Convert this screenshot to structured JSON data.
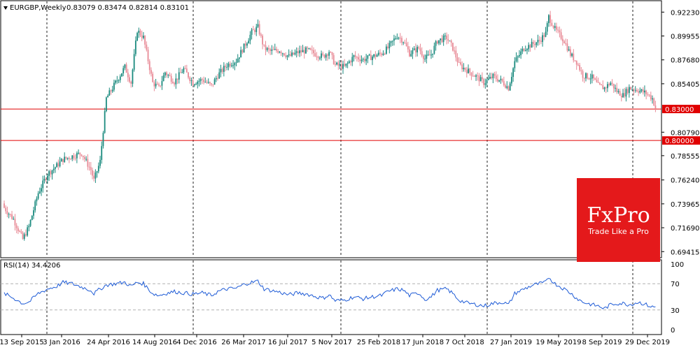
{
  "header": {
    "symbol": "EURGBP,Weekly",
    "ohlc": "0.83079 0.83474 0.82814 0.83101"
  },
  "price_axis": {
    "ticks": [
      "0.92230",
      "0.89955",
      "0.87680",
      "0.85405",
      "0.80790",
      "0.78555",
      "0.76240",
      "0.73965",
      "0.71690",
      "0.69415"
    ],
    "tick_values": [
      0.9223,
      0.89955,
      0.8768,
      0.85405,
      0.8079,
      0.78555,
      0.7624,
      0.73965,
      0.7169,
      0.69415
    ],
    "range": [
      0.689,
      0.9325
    ]
  },
  "levels": [
    {
      "label": "0.83000",
      "value": 0.83,
      "color": "#e00000"
    },
    {
      "label": "0.80000",
      "value": 0.8,
      "color": "#e00000"
    }
  ],
  "time_axis": {
    "labels": [
      "13 Sep 2015",
      "3 Jan 2016",
      "24 Apr 2016",
      "14 Aug 2016",
      "4 Dec 2016",
      "26 Mar 2017",
      "16 Jul 2017",
      "5 Nov 2017",
      "25 Feb 2018",
      "17 Jun 2018",
      "7 Oct 2018",
      "27 Jan 2019",
      "19 May 2019",
      "8 Sep 2019",
      "29 Dec 2019"
    ]
  },
  "rsi": {
    "label": "RSI(14) 34.4206",
    "ticks": [
      "100",
      "70",
      "30",
      "0"
    ],
    "levels": [
      70,
      30
    ],
    "color": "#1e5bd6"
  },
  "logo": {
    "brand": "FxPro",
    "tagline": "Trade Like a Pro",
    "bg": "#e4191b"
  },
  "colors": {
    "bull": "#1a8a7e",
    "bear": "#e88a96",
    "grid": "#222222"
  },
  "chart_data": {
    "type": "candlestick",
    "title": "EURGBP,Weekly",
    "interval": "weekly",
    "first_week": "13 Sep 2015",
    "last_week": "9 Feb 2020",
    "close_path": [
      [
        0,
        0.736
      ],
      [
        6,
        0.725
      ],
      [
        12,
        0.706
      ],
      [
        16,
        0.718
      ],
      [
        22,
        0.75
      ],
      [
        28,
        0.768
      ],
      [
        34,
        0.776
      ],
      [
        38,
        0.782
      ],
      [
        44,
        0.785
      ],
      [
        50,
        0.788
      ],
      [
        56,
        0.772
      ],
      [
        58,
        0.762
      ],
      [
        62,
        0.78
      ],
      [
        66,
        0.84
      ],
      [
        72,
        0.855
      ],
      [
        78,
        0.87
      ],
      [
        82,
        0.855
      ],
      [
        86,
        0.905
      ],
      [
        90,
        0.898
      ],
      [
        96,
        0.855
      ],
      [
        100,
        0.85
      ],
      [
        104,
        0.865
      ],
      [
        110,
        0.856
      ],
      [
        116,
        0.868
      ],
      [
        122,
        0.855
      ],
      [
        128,
        0.858
      ],
      [
        134,
        0.852
      ],
      [
        138,
        0.862
      ],
      [
        144,
        0.872
      ],
      [
        150,
        0.876
      ],
      [
        156,
        0.892
      ],
      [
        160,
        0.903
      ],
      [
        164,
        0.908
      ],
      [
        168,
        0.888
      ],
      [
        172,
        0.885
      ],
      [
        178,
        0.886
      ],
      [
        184,
        0.88
      ],
      [
        190,
        0.884
      ],
      [
        196,
        0.886
      ],
      [
        202,
        0.882
      ],
      [
        206,
        0.88
      ],
      [
        210,
        0.885
      ],
      [
        214,
        0.872
      ],
      [
        220,
        0.87
      ],
      [
        226,
        0.88
      ],
      [
        232,
        0.877
      ],
      [
        238,
        0.88
      ],
      [
        244,
        0.883
      ],
      [
        248,
        0.888
      ],
      [
        254,
        0.9
      ],
      [
        258,
        0.895
      ],
      [
        262,
        0.883
      ],
      [
        268,
        0.888
      ],
      [
        272,
        0.878
      ],
      [
        276,
        0.882
      ],
      [
        280,
        0.895
      ],
      [
        286,
        0.898
      ],
      [
        290,
        0.888
      ],
      [
        294,
        0.872
      ],
      [
        300,
        0.866
      ],
      [
        306,
        0.86
      ],
      [
        310,
        0.855
      ],
      [
        316,
        0.861
      ],
      [
        322,
        0.856
      ],
      [
        326,
        0.85
      ],
      [
        330,
        0.875
      ],
      [
        336,
        0.888
      ],
      [
        342,
        0.892
      ],
      [
        346,
        0.895
      ],
      [
        350,
        0.902
      ],
      [
        352,
        0.918
      ],
      [
        356,
        0.906
      ],
      [
        362,
        0.895
      ],
      [
        366,
        0.882
      ],
      [
        370,
        0.875
      ],
      [
        374,
        0.862
      ],
      [
        380,
        0.86
      ],
      [
        384,
        0.852
      ],
      [
        388,
        0.85
      ],
      [
        392,
        0.855
      ],
      [
        396,
        0.847
      ],
      [
        400,
        0.843
      ],
      [
        404,
        0.85
      ],
      [
        410,
        0.848
      ],
      [
        415,
        0.845
      ],
      [
        419,
        0.84
      ],
      [
        421,
        0.831
      ]
    ],
    "rsi_path": [
      [
        0,
        55
      ],
      [
        6,
        48
      ],
      [
        12,
        40
      ],
      [
        16,
        42
      ],
      [
        22,
        55
      ],
      [
        28,
        62
      ],
      [
        34,
        66
      ],
      [
        38,
        72
      ],
      [
        44,
        70
      ],
      [
        50,
        65
      ],
      [
        56,
        60
      ],
      [
        58,
        55
      ],
      [
        62,
        62
      ],
      [
        66,
        68
      ],
      [
        72,
        70
      ],
      [
        78,
        72
      ],
      [
        82,
        66
      ],
      [
        86,
        72
      ],
      [
        90,
        70
      ],
      [
        96,
        55
      ],
      [
        100,
        52
      ],
      [
        104,
        55
      ],
      [
        110,
        58
      ],
      [
        116,
        56
      ],
      [
        122,
        54
      ],
      [
        128,
        56
      ],
      [
        134,
        52
      ],
      [
        138,
        58
      ],
      [
        144,
        62
      ],
      [
        150,
        63
      ],
      [
        156,
        70
      ],
      [
        160,
        72
      ],
      [
        164,
        74
      ],
      [
        168,
        62
      ],
      [
        172,
        60
      ],
      [
        178,
        57
      ],
      [
        184,
        53
      ],
      [
        190,
        56
      ],
      [
        196,
        54
      ],
      [
        202,
        50
      ],
      [
        206,
        48
      ],
      [
        210,
        53
      ],
      [
        214,
        44
      ],
      [
        220,
        45
      ],
      [
        226,
        50
      ],
      [
        232,
        47
      ],
      [
        238,
        50
      ],
      [
        244,
        52
      ],
      [
        248,
        58
      ],
      [
        254,
        62
      ],
      [
        258,
        60
      ],
      [
        262,
        52
      ],
      [
        268,
        56
      ],
      [
        272,
        46
      ],
      [
        276,
        50
      ],
      [
        280,
        60
      ],
      [
        286,
        62
      ],
      [
        290,
        55
      ],
      [
        294,
        45
      ],
      [
        300,
        40
      ],
      [
        306,
        38
      ],
      [
        310,
        36
      ],
      [
        316,
        40
      ],
      [
        322,
        42
      ],
      [
        326,
        38
      ],
      [
        330,
        55
      ],
      [
        336,
        62
      ],
      [
        342,
        68
      ],
      [
        346,
        70
      ],
      [
        350,
        72
      ],
      [
        352,
        80
      ],
      [
        356,
        70
      ],
      [
        362,
        62
      ],
      [
        366,
        56
      ],
      [
        370,
        48
      ],
      [
        374,
        42
      ],
      [
        380,
        38
      ],
      [
        384,
        36
      ],
      [
        388,
        32
      ],
      [
        392,
        38
      ],
      [
        396,
        40
      ],
      [
        400,
        40
      ],
      [
        404,
        38
      ],
      [
        410,
        42
      ],
      [
        415,
        38
      ],
      [
        419,
        34.4206
      ]
    ]
  }
}
